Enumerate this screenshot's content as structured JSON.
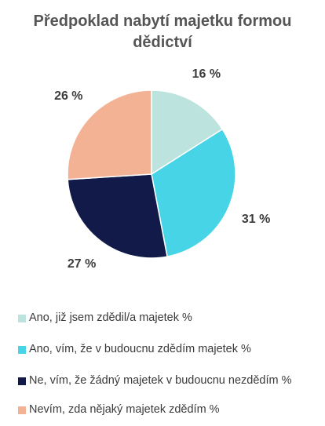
{
  "chart_data": {
    "type": "pie",
    "title_lines": [
      "Předpoklad nabytí majetku formou",
      "dědictví"
    ],
    "categories": [
      "Ano, již jsem zdědil/a majetek %",
      "Ano, vím, že v budoucnu zdědím majetek %",
      "Ne, vím, že žádný majetek v budoucnu nezdědím %",
      "Nevím, zda nějaký majetek zdědím  %"
    ],
    "values": [
      16,
      31,
      27,
      26
    ],
    "data_labels": [
      "16 %",
      "31 %",
      "27 %",
      "26 %"
    ],
    "colors": [
      "#bde3df",
      "#46d4e6",
      "#111a48",
      "#f4b295"
    ],
    "start_angle_deg": 0,
    "direction": "clockwise",
    "legend_position": "bottom"
  }
}
